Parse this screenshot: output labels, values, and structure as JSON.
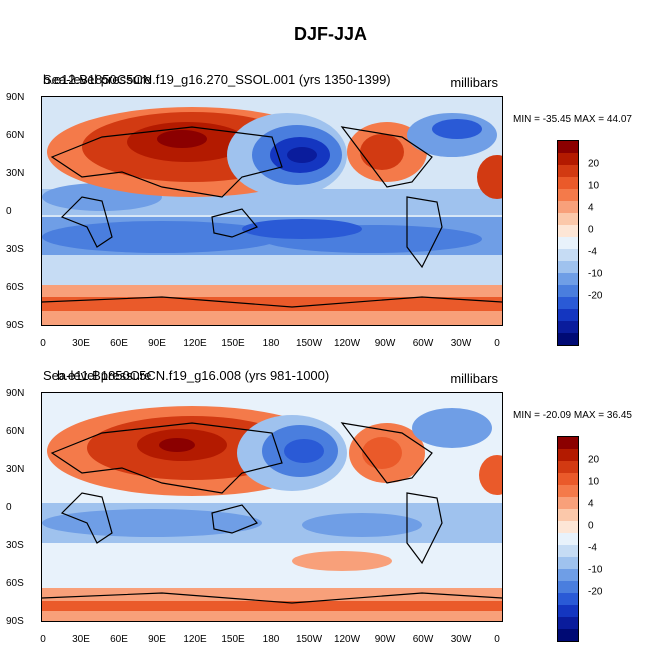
{
  "figure_title": "DJF-JJA",
  "panels": [
    {
      "title_left_a": "Sea-level pressure",
      "title_left_b": "b.e12.B1850C5CN.f19_g16.270_SSOL.001 (yrs 1350-1399)",
      "title_right": "millibars",
      "minmax": "MIN = -35.45 MAX =  44.07"
    },
    {
      "title_left_a": "Sea-level pressure",
      "title_left_b": "b.e11.B1850C5CN.f19_g16.008 (yrs 981-1000)",
      "title_right": "millibars",
      "minmax": "MIN = -20.09 MAX =  36.45"
    }
  ],
  "lat_labels": [
    "90N",
    "60N",
    "30N",
    "0",
    "30S",
    "60S",
    "90S"
  ],
  "lon_labels": [
    "0",
    "30E",
    "60E",
    "90E",
    "120E",
    "150E",
    "180",
    "150W",
    "120W",
    "90W",
    "60W",
    "30W",
    "0"
  ],
  "colorbar": {
    "labels": [
      "20",
      "10",
      "4",
      "0",
      "-4",
      "-10",
      "-20"
    ],
    "colors": [
      "#8b0000",
      "#b31a00",
      "#d23a12",
      "#ea5a2a",
      "#f47a4a",
      "#f8a07a",
      "#fbc8aa",
      "#fde6d6",
      "#e8f2fb",
      "#c6dcf4",
      "#9fc2ee",
      "#6f9ee6",
      "#4a7ede",
      "#2a5ad6",
      "#1436c0",
      "#0a1c9c",
      "#000a74"
    ]
  }
}
